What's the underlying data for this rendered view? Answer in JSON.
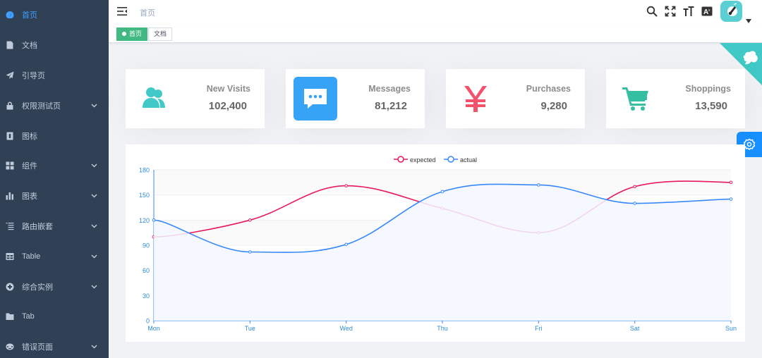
{
  "sidebar": {
    "items": [
      {
        "label": "首页",
        "icon": "dashboard-icon",
        "active": true,
        "has_children": false
      },
      {
        "label": "文档",
        "icon": "documentation-icon",
        "active": false,
        "has_children": false
      },
      {
        "label": "引导页",
        "icon": "guide-icon",
        "active": false,
        "has_children": false
      },
      {
        "label": "权限测试页",
        "icon": "lock-icon",
        "active": false,
        "has_children": true
      },
      {
        "label": "图标",
        "icon": "icon-icon",
        "active": false,
        "has_children": false
      },
      {
        "label": "组件",
        "icon": "component-icon",
        "active": false,
        "has_children": true
      },
      {
        "label": "图表",
        "icon": "chart-icon",
        "active": false,
        "has_children": true
      },
      {
        "label": "路由嵌套",
        "icon": "nested-icon",
        "active": false,
        "has_children": true
      },
      {
        "label": "Table",
        "icon": "table-icon",
        "active": false,
        "has_children": true
      },
      {
        "label": "综合实例",
        "icon": "example-icon",
        "active": false,
        "has_children": true
      },
      {
        "label": "Tab",
        "icon": "tab-icon",
        "active": false,
        "has_children": false
      },
      {
        "label": "错误页面",
        "icon": "404-icon",
        "active": false,
        "has_children": true
      }
    ]
  },
  "navbar": {
    "breadcrumb": "首页",
    "icons": [
      "search-icon",
      "fullscreen-icon",
      "size-icon",
      "language-icon"
    ]
  },
  "tags": [
    {
      "label": "首页",
      "active": true
    },
    {
      "label": "文档",
      "active": false
    }
  ],
  "cards": [
    {
      "title": "New Visits",
      "value": "102,400",
      "icon": "peoples-icon",
      "color": "#40c9c6"
    },
    {
      "title": "Messages",
      "value": "81,212",
      "icon": "message-icon",
      "color": "#36a3f7"
    },
    {
      "title": "Purchases",
      "value": "9,280",
      "icon": "money-icon",
      "color": "#f4516c"
    },
    {
      "title": "Shoppings",
      "value": "13,590",
      "icon": "shopping-icon",
      "color": "#34bfa3"
    }
  ],
  "colors": {
    "sidebar_bg": "#304156",
    "sidebar_active": "#409eff",
    "tag_active": "#42b983",
    "expected": "#e8195c",
    "actual": "#3888fa"
  },
  "chart_data": {
    "type": "line",
    "categories": [
      "Mon",
      "Tue",
      "Wed",
      "Thu",
      "Fri",
      "Sat",
      "Sun"
    ],
    "series": [
      {
        "name": "expected",
        "values": [
          100,
          120,
          161,
          134,
          105,
          160,
          165
        ],
        "smooth": true,
        "area": false
      },
      {
        "name": "actual",
        "values": [
          120,
          82,
          91,
          154,
          162,
          140,
          145
        ],
        "smooth": true,
        "area": true
      }
    ],
    "ylim": [
      0,
      180
    ],
    "yticks": [
      0,
      30,
      60,
      90,
      120,
      150,
      180
    ],
    "legend": "top-center",
    "grid": true
  }
}
